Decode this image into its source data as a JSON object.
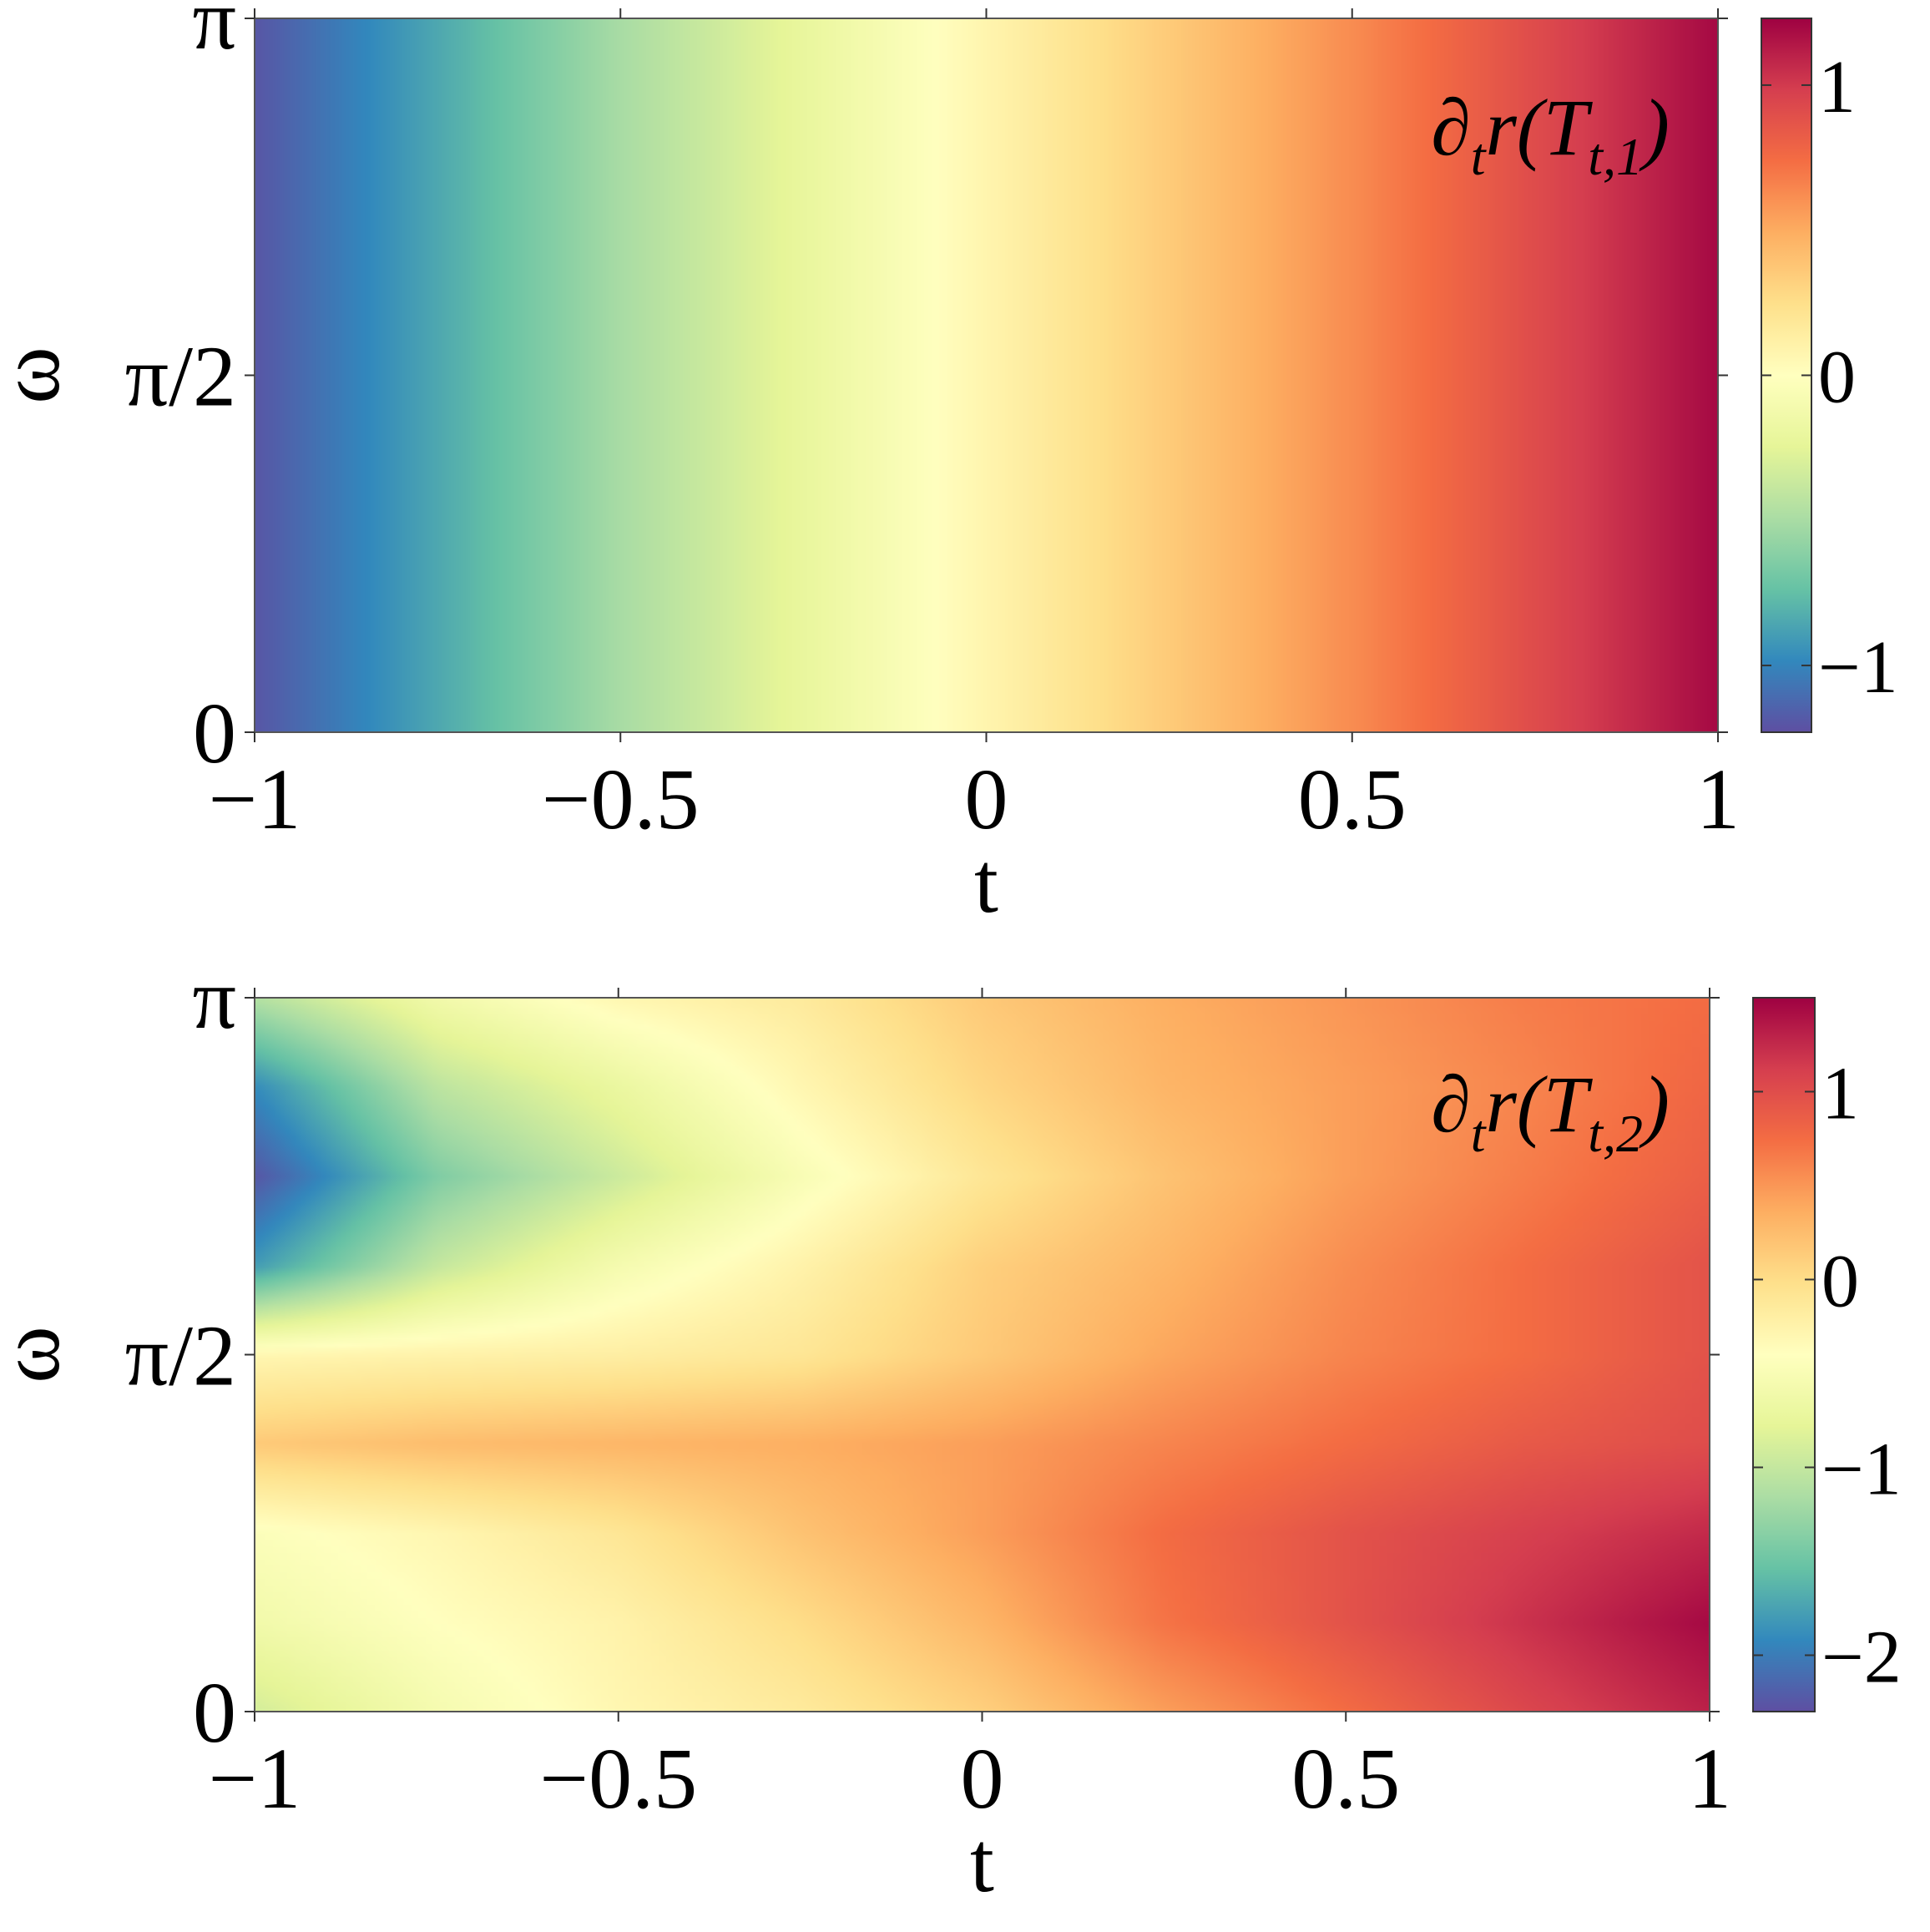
{
  "colormap": [
    "#5e4fa2",
    "#3288bd",
    "#66c2a5",
    "#abdda4",
    "#e6f598",
    "#ffffbf",
    "#fee08b",
    "#fdae61",
    "#f46d43",
    "#d53e4f",
    "#9e0142"
  ],
  "chart_data": [
    {
      "type": "heatmap",
      "title": "",
      "panel_label": {
        "base": "∂",
        "sub1": "t",
        "mid": "r(T",
        "sub2": "t,1",
        "end": ")"
      },
      "xlabel": "t",
      "ylabel": "ω",
      "xlim": [
        -1,
        1
      ],
      "ylim": [
        0,
        3.14159
      ],
      "xticks": [
        {
          "value": -1,
          "label": "−1"
        },
        {
          "value": -0.5,
          "label": "−0.5"
        },
        {
          "value": 0,
          "label": "0"
        },
        {
          "value": 0.5,
          "label": "0.5"
        },
        {
          "value": 1,
          "label": "1"
        }
      ],
      "yticks": [
        {
          "value": 0,
          "label": "0"
        },
        {
          "value": 1.5708,
          "label": "π/2"
        },
        {
          "value": 3.14159,
          "label": "π"
        }
      ],
      "colorbar": {
        "vmin": -1.23,
        "vmax": 1.23,
        "ticks": [
          {
            "value": -1,
            "label": "−1"
          },
          {
            "value": 0,
            "label": "0"
          },
          {
            "value": 1,
            "label": "1"
          }
        ]
      },
      "x": [
        -1,
        -0.5,
        0,
        0.5,
        1
      ],
      "y": [
        0,
        1.5708,
        3.14159
      ],
      "z": [
        [
          -1.2,
          -0.5,
          0.08,
          0.62,
          1.2
        ],
        [
          -1.2,
          -0.5,
          0.08,
          0.62,
          1.2
        ],
        [
          -1.2,
          -0.5,
          0.08,
          0.62,
          1.2
        ]
      ]
    },
    {
      "type": "heatmap",
      "title": "",
      "panel_label": {
        "base": "∂",
        "sub1": "t",
        "mid": "r(T",
        "sub2": "t,2",
        "end": ")"
      },
      "xlabel": "t",
      "ylabel": "ω",
      "xlim": [
        -1,
        1
      ],
      "ylim": [
        0,
        3.14159
      ],
      "xticks": [
        {
          "value": -1,
          "label": "−1"
        },
        {
          "value": -0.5,
          "label": "−0.5"
        },
        {
          "value": 0,
          "label": "0"
        },
        {
          "value": 0.5,
          "label": "0.5"
        },
        {
          "value": 1,
          "label": "1"
        }
      ],
      "yticks": [
        {
          "value": 0,
          "label": "0"
        },
        {
          "value": 1.5708,
          "label": "π/2"
        },
        {
          "value": 3.14159,
          "label": "π"
        }
      ],
      "colorbar": {
        "vmin": -2.3,
        "vmax": 1.5,
        "ticks": [
          {
            "value": -2,
            "label": "−2"
          },
          {
            "value": -1,
            "label": "−1"
          },
          {
            "value": 0,
            "label": "0"
          },
          {
            "value": 1,
            "label": "1"
          }
        ]
      },
      "x": [
        -1,
        -0.75,
        -0.5,
        -0.25,
        0,
        0.25,
        0.5,
        0.75,
        1
      ],
      "y": [
        0,
        0.393,
        0.785,
        1.178,
        1.571,
        1.963,
        2.356,
        2.749,
        3.142
      ],
      "z": [
        [
          -0.9,
          -0.55,
          -0.3,
          -0.15,
          0.1,
          0.45,
          0.75,
          1.05,
          1.3
        ],
        [
          -0.6,
          -0.4,
          -0.25,
          0.0,
          0.3,
          0.7,
          0.95,
          1.2,
          1.45
        ],
        [
          -0.45,
          -0.3,
          -0.1,
          0.2,
          0.45,
          0.75,
          0.95,
          1.1,
          1.25
        ],
        [
          0.15,
          0.25,
          0.3,
          0.35,
          0.45,
          0.6,
          0.75,
          0.9,
          1.0
        ],
        [
          -0.3,
          -0.25,
          -0.2,
          -0.1,
          0.15,
          0.4,
          0.6,
          0.75,
          0.95
        ],
        [
          -1.8,
          -1.0,
          -0.55,
          -0.25,
          0.1,
          0.3,
          0.55,
          0.75,
          0.95
        ],
        [
          -2.25,
          -1.4,
          -0.95,
          -0.5,
          -0.1,
          0.2,
          0.45,
          0.65,
          0.85
        ],
        [
          -1.9,
          -1.05,
          -0.7,
          -0.3,
          0.05,
          0.3,
          0.45,
          0.6,
          0.8
        ],
        [
          -1.1,
          -0.6,
          -0.3,
          -0.15,
          0.15,
          0.35,
          0.5,
          0.65,
          0.75
        ]
      ]
    }
  ]
}
